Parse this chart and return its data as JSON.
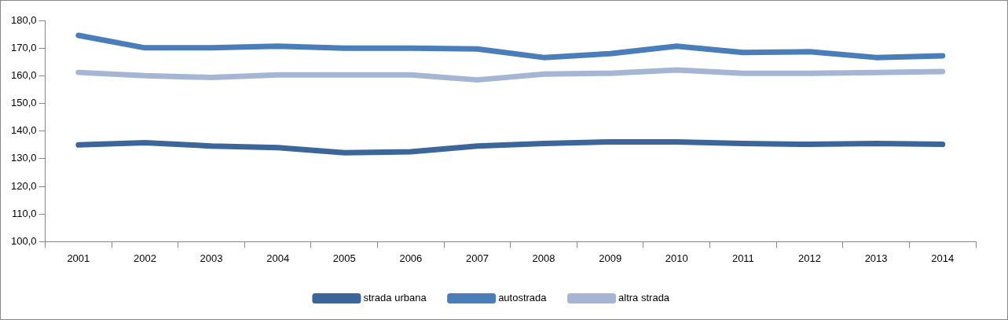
{
  "chart_data": {
    "type": "line",
    "categories": [
      "2001",
      "2002",
      "2003",
      "2004",
      "2005",
      "2006",
      "2007",
      "2008",
      "2009",
      "2010",
      "2011",
      "2012",
      "2013",
      "2014"
    ],
    "series": [
      {
        "name": "strada urbana",
        "color": "#3c6699",
        "values": [
          135.0,
          135.8,
          134.6,
          134.0,
          132.2,
          132.5,
          134.6,
          135.5,
          136.1,
          136.1,
          135.5,
          135.2,
          135.5,
          135.2
        ]
      },
      {
        "name": "autostrada",
        "color": "#4a7ebb",
        "values": [
          174.6,
          170.1,
          170.1,
          170.7,
          170.0,
          170.0,
          169.7,
          166.6,
          168.0,
          170.7,
          168.4,
          168.7,
          166.6,
          167.2
        ]
      },
      {
        "name": "altra strada",
        "color": "#a5b6d4",
        "values": [
          161.2,
          160.0,
          159.4,
          160.3,
          160.3,
          160.3,
          158.5,
          160.6,
          160.9,
          162.1,
          160.9,
          160.9,
          161.2,
          161.5
        ]
      }
    ],
    "ylim": [
      100,
      180
    ],
    "yticks": [
      {
        "value": 100,
        "label": "100,0"
      },
      {
        "value": 110,
        "label": "110,0"
      },
      {
        "value": 120,
        "label": "120,0"
      },
      {
        "value": 130,
        "label": "130,0"
      },
      {
        "value": 140,
        "label": "140,0"
      },
      {
        "value": 150,
        "label": "150,0"
      },
      {
        "value": 160,
        "label": "160,0"
      },
      {
        "value": 170,
        "label": "170,0"
      },
      {
        "value": 180,
        "label": "180,0"
      }
    ],
    "grid": false,
    "legend": "bottom",
    "marker": "none",
    "line_style": "solid"
  }
}
